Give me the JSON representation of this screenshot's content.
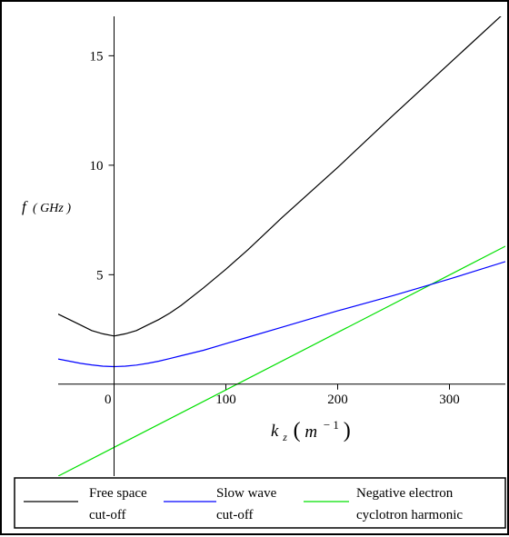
{
  "chart_data": {
    "type": "line",
    "title": "",
    "xlabel": {
      "main": "k",
      "sub": "z",
      "unit_open": "(",
      "unit_base": "m",
      "unit_exp": "− 1",
      "unit_close": ")"
    },
    "ylabel": {
      "main": "f",
      "unit": "( GHz )"
    },
    "xlim": [
      -50,
      350
    ],
    "ylim": [
      -4.2,
      16.8
    ],
    "x_ticks": [
      0,
      100,
      200,
      300
    ],
    "x_tick_labels": [
      "0",
      "100",
      "200",
      "300"
    ],
    "y_ticks": [
      5,
      10,
      15
    ],
    "y_tick_labels": [
      "5",
      "10",
      "15"
    ],
    "grid": false,
    "legend_position": "bottom",
    "series": [
      {
        "name": "Free space cut-off",
        "legend_lines": [
          "Free space",
          "cut-off"
        ],
        "color": "#000000",
        "x": [
          -50,
          -40,
          -30,
          -20,
          -10,
          0,
          10,
          20,
          30,
          40,
          50,
          60,
          80,
          100,
          120,
          150,
          200,
          250,
          300,
          350
        ],
        "y": [
          3.2,
          2.95,
          2.7,
          2.45,
          2.3,
          2.2,
          2.3,
          2.45,
          2.7,
          2.95,
          3.25,
          3.6,
          4.4,
          5.25,
          6.15,
          7.6,
          9.9,
          12.3,
          14.65,
          17.0
        ]
      },
      {
        "name": "Slow wave cut-off",
        "legend_lines": [
          "Slow wave",
          "cut-off"
        ],
        "color": "#0000ff",
        "x": [
          -50,
          -40,
          -30,
          -20,
          -10,
          0,
          10,
          20,
          30,
          40,
          50,
          60,
          80,
          100,
          120,
          150,
          200,
          250,
          300,
          350
        ],
        "y": [
          1.15,
          1.05,
          0.95,
          0.88,
          0.82,
          0.8,
          0.82,
          0.87,
          0.95,
          1.05,
          1.17,
          1.3,
          1.55,
          1.85,
          2.15,
          2.6,
          3.35,
          4.05,
          4.8,
          5.6
        ]
      },
      {
        "name": "Negative electron cyclotron harmonic",
        "legend_lines": [
          "Negative electron",
          "cyclotron harmonic"
        ],
        "color": "#00e000",
        "x": [
          -50,
          350
        ],
        "y": [
          -4.2,
          6.3
        ]
      }
    ]
  }
}
